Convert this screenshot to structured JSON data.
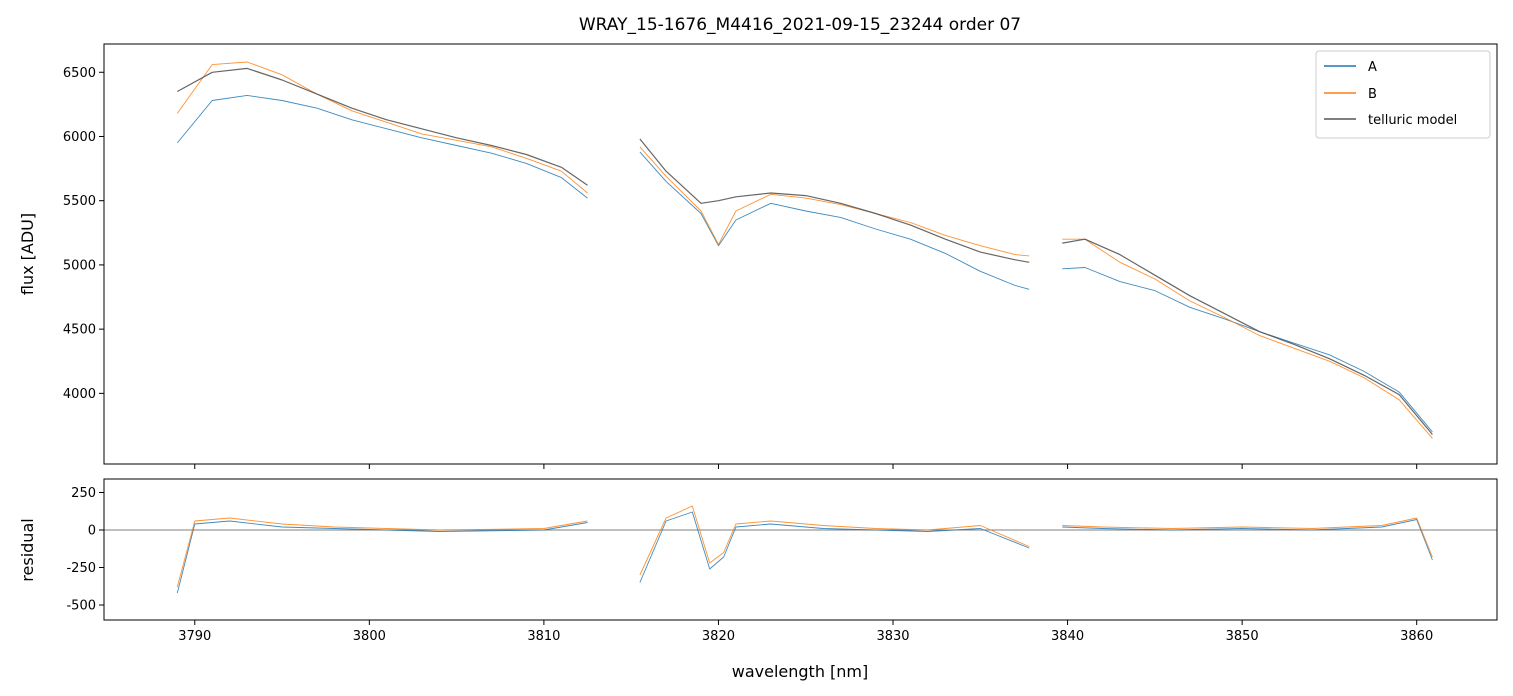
{
  "chart_data": [
    {
      "type": "line",
      "panel": "top",
      "title": "WRAY_15-1676_M4416_2021-09-15_23244  order 07",
      "xlabel": "",
      "ylabel": "flux [ADU]",
      "xlim": [
        3784.8,
        3864.6
      ],
      "ylim": [
        3450,
        6720
      ],
      "yticks": [
        4000,
        4500,
        5000,
        5500,
        6000,
        6500
      ],
      "xticks": [
        3790,
        3800,
        3810,
        3820,
        3830,
        3840,
        3850,
        3860
      ],
      "legend": {
        "position": "top-right",
        "entries": [
          "A",
          "B",
          "telluric model"
        ]
      },
      "segments": [
        [
          3788.8,
          3812.6
        ],
        [
          3815.4,
          3837.9
        ],
        [
          3839.6,
          3861.0
        ]
      ],
      "series": [
        {
          "name": "A",
          "color": "#1f77b4",
          "x": [
            3789,
            3791,
            3793,
            3795,
            3797,
            3799,
            3801,
            3803,
            3805,
            3807,
            3809,
            3811,
            3812.5,
            3815.5,
            3817,
            3819,
            3820,
            3821,
            3823,
            3825,
            3827,
            3829,
            3831,
            3833,
            3835,
            3837,
            3837.8,
            3839.7,
            3841,
            3843,
            3845,
            3847,
            3849,
            3851,
            3853,
            3855,
            3857,
            3859,
            3860.9
          ],
          "values": [
            5950,
            6280,
            6320,
            6280,
            6220,
            6130,
            6060,
            5990,
            5930,
            5870,
            5790,
            5680,
            5520,
            5880,
            5650,
            5400,
            5150,
            5350,
            5480,
            5420,
            5370,
            5280,
            5200,
            5090,
            4950,
            4840,
            4810,
            4970,
            4980,
            4870,
            4800,
            4670,
            4580,
            4480,
            4390,
            4300,
            4170,
            4010,
            3700
          ]
        },
        {
          "name": "B",
          "color": "#ff7f0e",
          "x": [
            3789,
            3791,
            3793,
            3795,
            3797,
            3799,
            3801,
            3803,
            3805,
            3807,
            3809,
            3811,
            3812.5,
            3815.5,
            3817,
            3819,
            3820,
            3821,
            3823,
            3825,
            3827,
            3829,
            3831,
            3833,
            3835,
            3837,
            3837.8,
            3839.7,
            3841,
            3843,
            3845,
            3847,
            3849,
            3851,
            3853,
            3855,
            3857,
            3859,
            3860.9
          ],
          "values": [
            6180,
            6560,
            6580,
            6480,
            6330,
            6200,
            6110,
            6020,
            5970,
            5920,
            5830,
            5730,
            5560,
            5920,
            5690,
            5420,
            5160,
            5420,
            5550,
            5520,
            5470,
            5400,
            5330,
            5230,
            5150,
            5080,
            5070,
            5200,
            5200,
            5020,
            4890,
            4720,
            4590,
            4450,
            4350,
            4250,
            4120,
            3950,
            3650
          ]
        },
        {
          "name": "telluric model",
          "color": "#555555",
          "x": [
            3789,
            3791,
            3793,
            3795,
            3797,
            3799,
            3801,
            3803,
            3805,
            3807,
            3809,
            3811,
            3812.5,
            3815.5,
            3817,
            3819,
            3820,
            3821,
            3823,
            3825,
            3827,
            3829,
            3831,
            3833,
            3835,
            3837,
            3837.8,
            3839.7,
            3841,
            3843,
            3845,
            3847,
            3849,
            3851,
            3853,
            3855,
            3857,
            3859,
            3860.9
          ],
          "values": [
            6350,
            6500,
            6530,
            6440,
            6330,
            6220,
            6130,
            6060,
            5990,
            5930,
            5860,
            5760,
            5620,
            5980,
            5730,
            5480,
            5500,
            5530,
            5560,
            5540,
            5480,
            5400,
            5310,
            5200,
            5100,
            5040,
            5020,
            5170,
            5200,
            5080,
            4920,
            4760,
            4620,
            4480,
            4380,
            4270,
            4140,
            3990,
            3680
          ]
        }
      ]
    },
    {
      "type": "line",
      "panel": "bottom",
      "title": "",
      "xlabel": "wavelength [nm]",
      "ylabel": "residual",
      "xlim": [
        3784.8,
        3864.6
      ],
      "ylim": [
        -600,
        340
      ],
      "yticks": [
        -500,
        -250,
        0,
        250
      ],
      "xticks": [
        3790,
        3800,
        3810,
        3820,
        3830,
        3840,
        3850,
        3860
      ],
      "zero_line": 0,
      "segments": [
        [
          3789.0,
          3812.6
        ],
        [
          3815.5,
          3837.9
        ],
        [
          3839.6,
          3861.0
        ]
      ],
      "series": [
        {
          "name": "A",
          "color": "#1f77b4",
          "x": [
            3789,
            3790,
            3792,
            3795,
            3798,
            3801,
            3804,
            3807,
            3810,
            3812.5,
            3815.5,
            3817,
            3818.5,
            3819.5,
            3820.3,
            3821,
            3823,
            3826,
            3829,
            3832,
            3835,
            3837.8,
            3839.7,
            3842,
            3846,
            3850,
            3854,
            3858,
            3860,
            3860.9
          ],
          "values": [
            -420,
            40,
            60,
            20,
            10,
            0,
            -10,
            -5,
            0,
            50,
            -350,
            60,
            120,
            -260,
            -180,
            20,
            40,
            10,
            0,
            -10,
            10,
            -120,
            20,
            10,
            0,
            10,
            0,
            20,
            70,
            -200
          ]
        },
        {
          "name": "B",
          "color": "#ff7f0e",
          "x": [
            3789,
            3790,
            3792,
            3795,
            3798,
            3801,
            3804,
            3807,
            3810,
            3812.5,
            3815.5,
            3817,
            3818.5,
            3819.5,
            3820.3,
            3821,
            3823,
            3826,
            3829,
            3832,
            3835,
            3837.8,
            3839.7,
            3842,
            3846,
            3850,
            3854,
            3858,
            3860,
            3860.9
          ],
          "values": [
            -380,
            60,
            80,
            40,
            20,
            10,
            0,
            5,
            10,
            60,
            -300,
            80,
            160,
            -220,
            -150,
            40,
            60,
            30,
            10,
            0,
            30,
            -110,
            30,
            20,
            10,
            20,
            10,
            30,
            80,
            -180
          ]
        }
      ]
    }
  ]
}
